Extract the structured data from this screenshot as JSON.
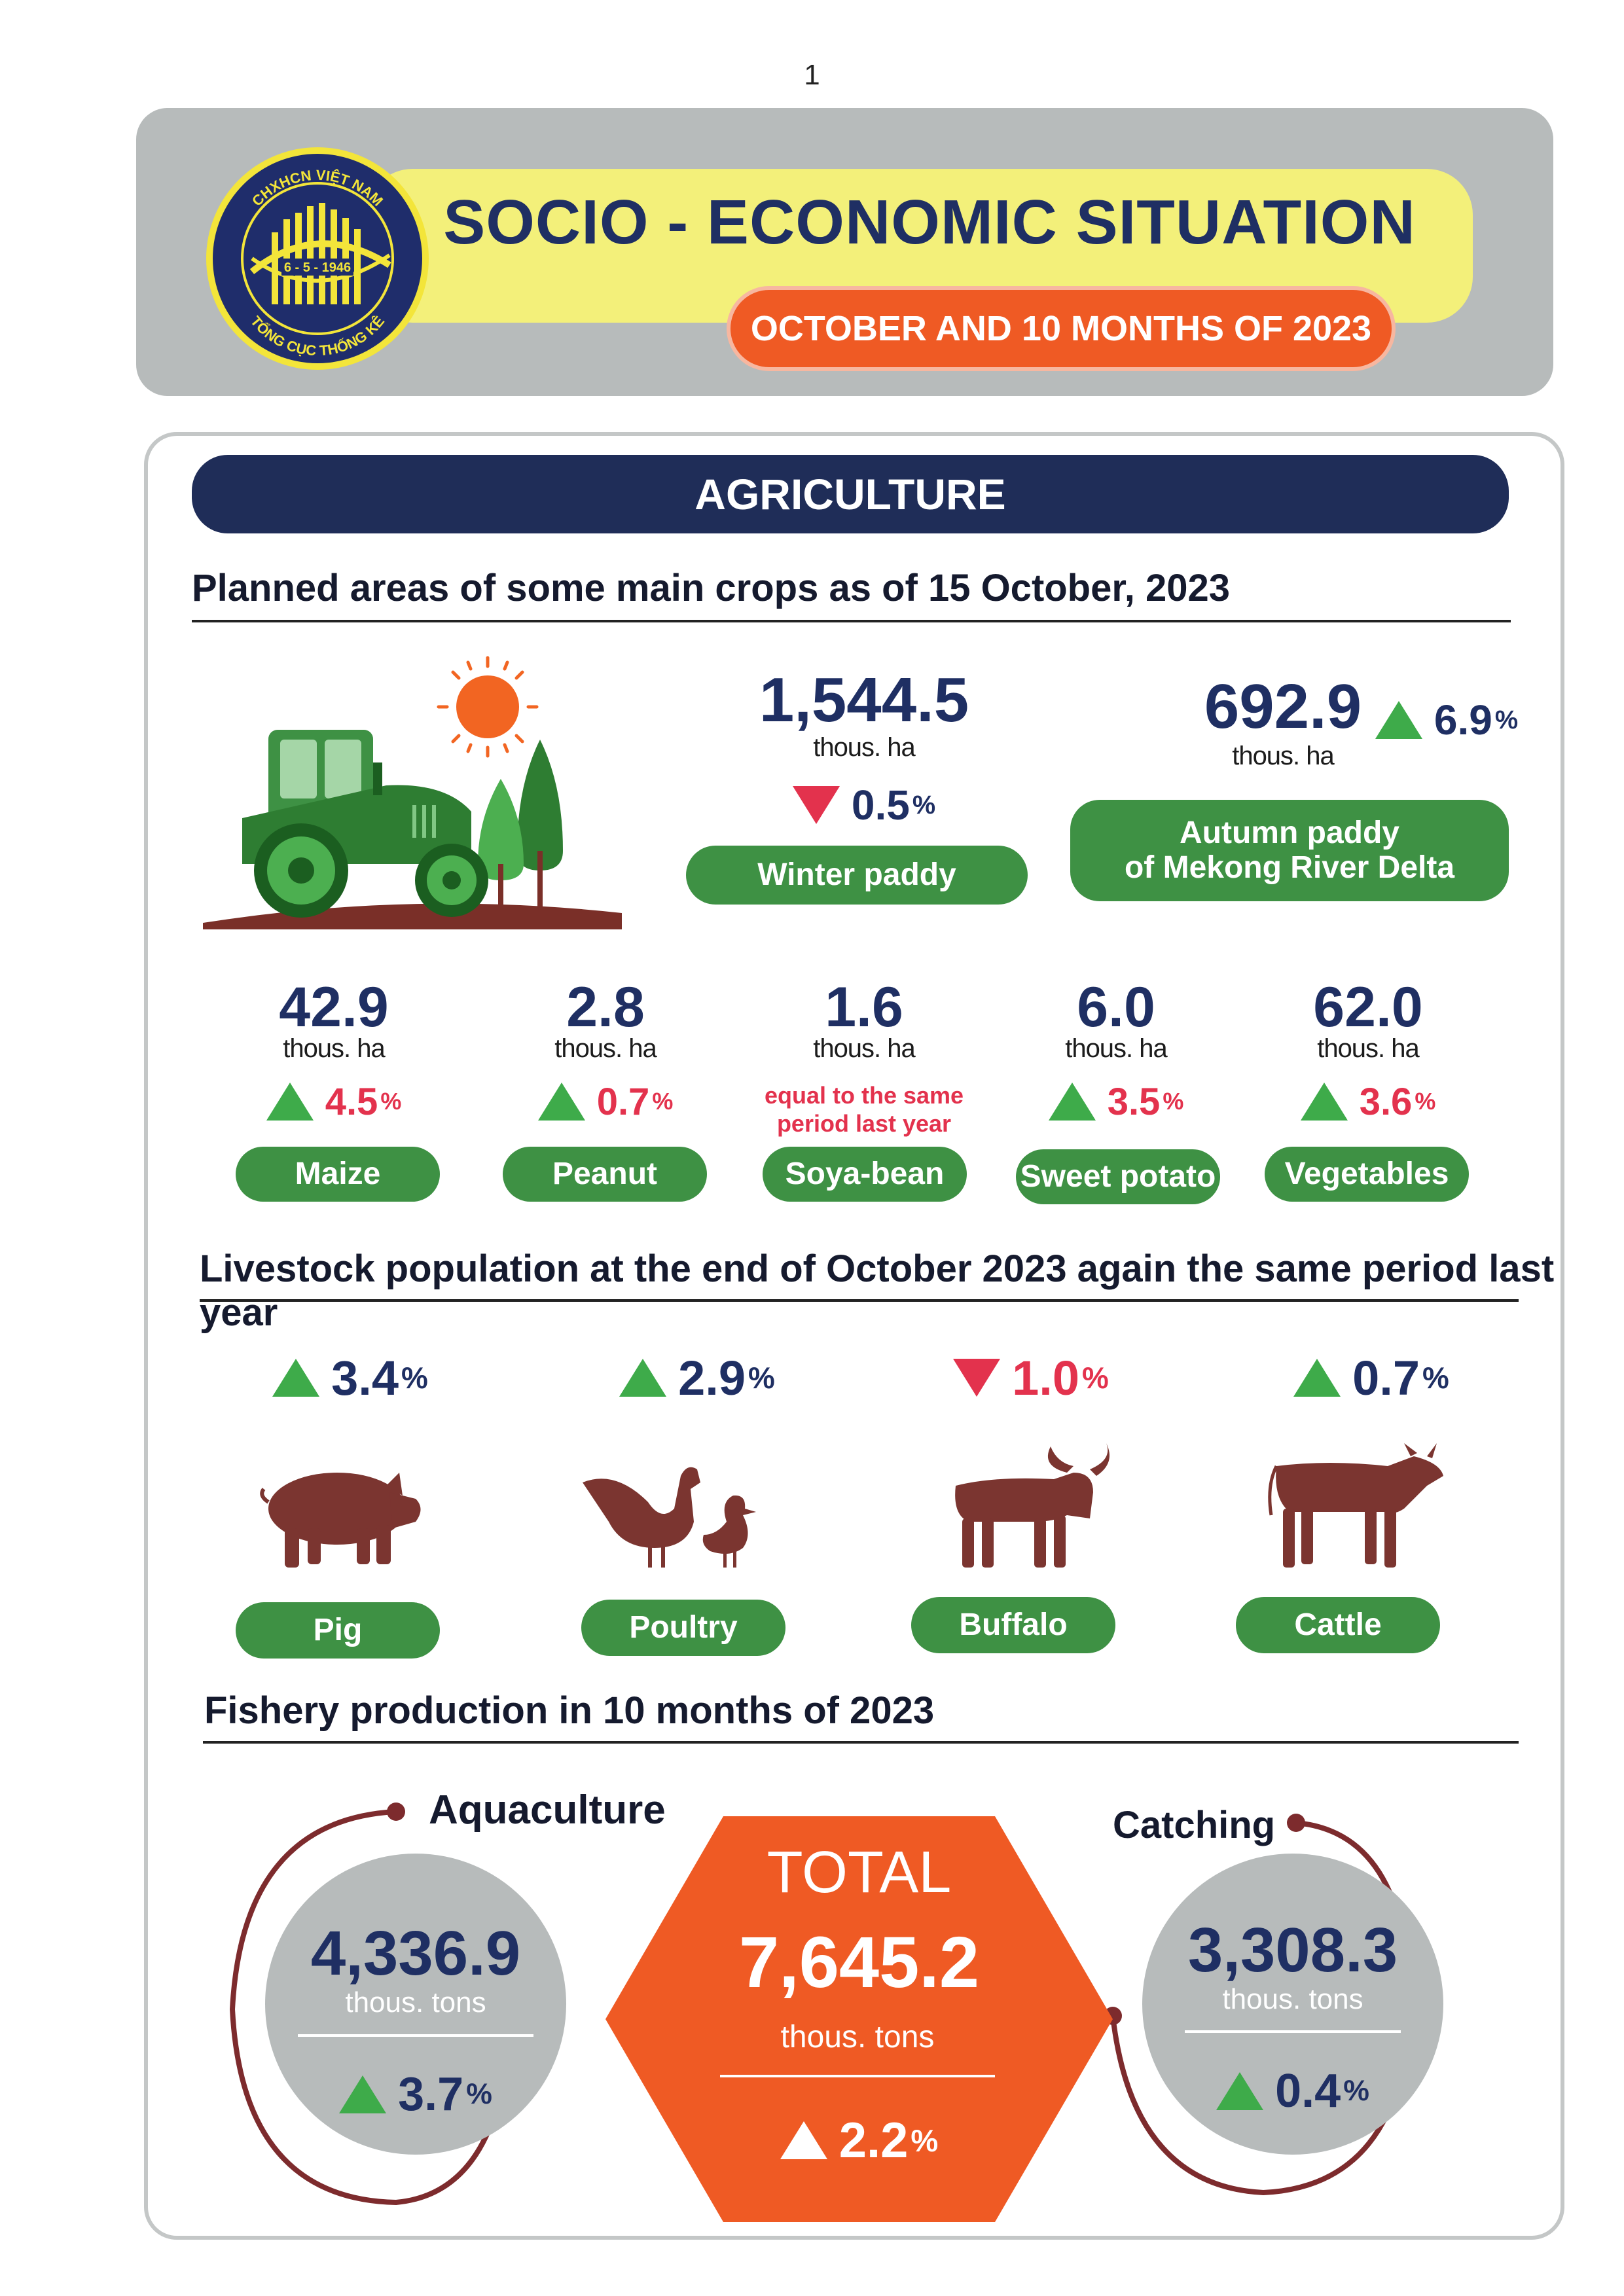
{
  "page_number": "1",
  "header": {
    "title": "SOCIO - ECONOMIC SITUATION",
    "subtitle": "OCTOBER AND 10 MONTHS OF 2023",
    "logo": {
      "top_text": "CHXHCN VIỆT NAM",
      "date": "6 - 5 - 1946",
      "bottom_text": "TỔNG CỤC THỐNG KÊ"
    }
  },
  "section": "AGRICULTURE",
  "crops": {
    "title": "Planned areas of some main crops as of 15 October, 2023",
    "winter_paddy": {
      "value": "1,544.5",
      "unit": "thous. ha",
      "change": "0.5",
      "pct": "%",
      "direction": "down",
      "label": "Winter paddy"
    },
    "autumn_paddy": {
      "value": "692.9",
      "unit": "thous. ha",
      "change": "6.9",
      "pct": "%",
      "direction": "up",
      "label_line1": "Autumn paddy",
      "label_line2": "of Mekong River Delta"
    },
    "maize": {
      "value": "42.9",
      "unit": "thous. ha",
      "change": "4.5",
      "pct": "%",
      "direction": "up",
      "label": "Maize"
    },
    "peanut": {
      "value": "2.8",
      "unit": "thous. ha",
      "change": "0.7",
      "pct": "%",
      "direction": "up",
      "label": "Peanut"
    },
    "soya_bean": {
      "value": "1.6",
      "unit": "thous. ha",
      "note_line1": "equal to the same",
      "note_line2": "period last year",
      "label": "Soya-bean"
    },
    "sweet_potato": {
      "value": "6.0",
      "unit": "thous. ha",
      "change": "3.5",
      "pct": "%",
      "direction": "up",
      "label": "Sweet potato"
    },
    "vegetables": {
      "value": "62.0",
      "unit": "thous. ha",
      "change": "3.6",
      "pct": "%",
      "direction": "up",
      "label": "Vegetables"
    }
  },
  "livestock": {
    "title": "Livestock population at the end of October 2023 again the same period last year",
    "pig": {
      "change": "3.4",
      "pct": "%",
      "direction": "up",
      "label": "Pig"
    },
    "poultry": {
      "change": "2.9",
      "pct": "%",
      "direction": "up",
      "label": "Poultry"
    },
    "buffalo": {
      "change": "1.0",
      "pct": "%",
      "direction": "down",
      "label": "Buffalo"
    },
    "cattle": {
      "change": "0.7",
      "pct": "%",
      "direction": "up",
      "label": "Cattle"
    }
  },
  "fishery": {
    "title": "Fishery production in 10 months of 2023",
    "aquaculture": {
      "label": "Aquaculture",
      "value": "4,336.9",
      "unit": "thous. tons",
      "change": "3.7",
      "pct": "%",
      "direction": "up"
    },
    "total": {
      "label": "TOTAL",
      "value": "7,645.2",
      "unit": "thous. tons",
      "change": "2.2",
      "pct": "%",
      "direction": "up"
    },
    "catching": {
      "label": "Catching",
      "value": "3,308.3",
      "unit": "thous. tons",
      "change": "0.4",
      "pct": "%",
      "direction": "up"
    }
  },
  "colors": {
    "navy": "#1f2d58",
    "green": "#3e9144",
    "orange": "#ef5a24",
    "red": "#e3324d",
    "grey": "#b7bbbb",
    "livestock_brown": "#7b3530"
  }
}
